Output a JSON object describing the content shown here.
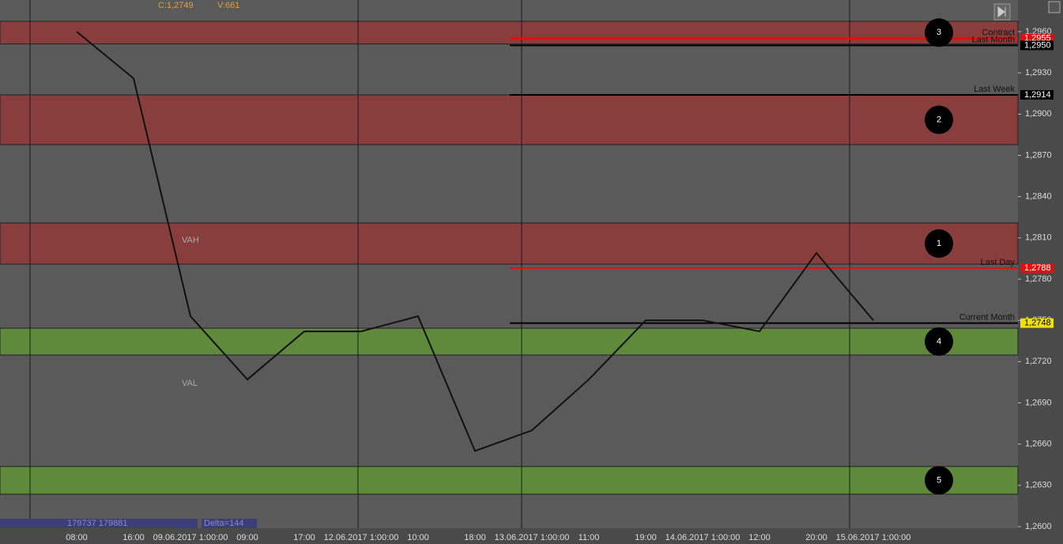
{
  "chart_data": {
    "type": "line",
    "header": [
      "C:1,2749",
      "V:661"
    ],
    "footer": [
      "179737 179881",
      "Delta=144"
    ],
    "profile_labels": [
      "VAH",
      "VAL"
    ],
    "categories": [
      "08:00",
      "16:00",
      "09.06.2017 1:00:00",
      "09:00",
      "17:00",
      "12.06.2017 1:00:00",
      "10:00",
      "18:00",
      "13.06.2017 1:00:00",
      "11:00",
      "19:00",
      "14.06.2017 1:00:00",
      "12:00",
      "20:00",
      "15.06.2017 1:00:00"
    ],
    "series": [
      {
        "color": "#111111",
        "values": [
          1.296,
          1.2926,
          1.2753,
          1.2707,
          1.2742,
          1.2742,
          1.2753,
          1.2655,
          1.267,
          1.2707,
          1.275,
          1.275,
          1.2742,
          1.2799,
          1.275
        ]
      }
    ],
    "ylim": [
      1.26,
      1.296
    ],
    "yticks": [
      {
        "value": 1.26,
        "label": "1,2600"
      },
      {
        "value": 1.263,
        "label": "1,2630"
      },
      {
        "value": 1.266,
        "label": "1,2660"
      },
      {
        "value": 1.269,
        "label": "1,2690"
      },
      {
        "value": 1.272,
        "label": "1,2720"
      },
      {
        "value": 1.275,
        "label": "1,2750"
      },
      {
        "value": 1.278,
        "label": "1,2780"
      },
      {
        "value": 1.281,
        "label": "1,2810"
      },
      {
        "value": 1.284,
        "label": "1,2840"
      },
      {
        "value": 1.287,
        "label": "1,2870"
      },
      {
        "value": 1.29,
        "label": "1,2900"
      },
      {
        "value": 1.293,
        "label": "1,2930"
      },
      {
        "value": 1.296,
        "label": "1,2960"
      }
    ],
    "zones": [
      {
        "label": "3",
        "range": [
          1.2951,
          1.29675
        ],
        "color": "#8a3d3d"
      },
      {
        "label": "2",
        "range": [
          1.28778,
          1.2914
        ],
        "color": "#8a3d3d"
      },
      {
        "label": "1",
        "range": [
          1.27909,
          1.28208
        ],
        "color": "#8a3d3d"
      },
      {
        "label": "4",
        "range": [
          1.27248,
          1.27443
        ],
        "color": "#5f8a3a"
      },
      {
        "label": "5",
        "range": [
          1.26236,
          1.26437
        ],
        "color": "#5f8a3a"
      }
    ],
    "levels": [
      {
        "name": "Contract",
        "value": 1.2955,
        "value_label": "1,2955",
        "color": "#e01010"
      },
      {
        "name": "Last Month",
        "value": 1.295,
        "value_label": "1,2950",
        "color": "#000000"
      },
      {
        "name": "Last Week",
        "value": 1.2914,
        "value_label": "1,2914",
        "color": "#000000"
      },
      {
        "name": "Last Day",
        "value": 1.2788,
        "value_label": "1,2788",
        "color": "#e01010"
      },
      {
        "name": "Current Month",
        "value": 1.2748,
        "value_label": "1,2748",
        "color": "#f0e000"
      }
    ]
  }
}
